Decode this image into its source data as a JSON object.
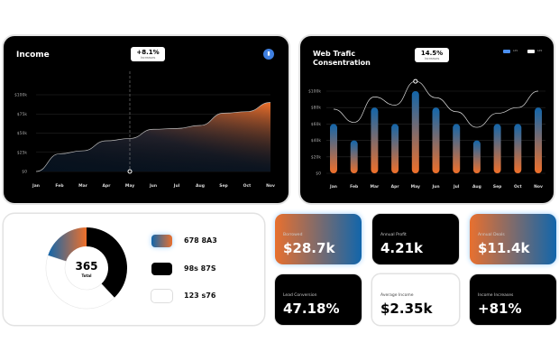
{
  "income": {
    "title": "Income",
    "tooltip": {
      "value": "+8.1%",
      "label": "Increases"
    },
    "icon": "bar-chart-icon"
  },
  "web": {
    "title_line1": "Web Trafic",
    "title_line2": "Consentration",
    "tooltip": {
      "value": "14.5%",
      "label": "Increases"
    },
    "legend": [
      "LP1",
      "LP2"
    ]
  },
  "donut": {
    "total": "365",
    "total_label": "Total",
    "legend": [
      "678 8A3",
      "98s 87S",
      "123 s76"
    ]
  },
  "stats": [
    {
      "label": "Borrowed",
      "value": "$28.7k"
    },
    {
      "label": "Annual Profit",
      "value": "4.21k"
    },
    {
      "label": "Annual Deals",
      "value": "$11.4k"
    },
    {
      "label": "Lead Conversion",
      "value": "47.18%"
    },
    {
      "label": "Average Income",
      "value": "$2.35k"
    },
    {
      "label": "Income Increases",
      "value": "+81%"
    }
  ],
  "colors": {
    "orange": "#e8702f",
    "blue": "#1266ab"
  },
  "chart_data": [
    {
      "type": "area",
      "title": "Income",
      "categories": [
        "Jan",
        "Feb",
        "Mar",
        "Apr",
        "May",
        "Jun",
        "Jul",
        "Aug",
        "Sep",
        "Oct",
        "Nov"
      ],
      "values": [
        0,
        23,
        27,
        40,
        43,
        55,
        56,
        60,
        76,
        78,
        90
      ],
      "yticks": [
        "$0",
        "$25k",
        "$50k",
        "$75k",
        "$100k"
      ],
      "ylim": [
        0,
        100
      ],
      "highlight": "May"
    },
    {
      "type": "bar",
      "title": "Web Trafic Consentration",
      "categories": [
        "Jan",
        "Feb",
        "Mar",
        "Apr",
        "May",
        "Jun",
        "Jul",
        "Aug",
        "Sep",
        "Oct",
        "Nov"
      ],
      "series": [
        {
          "name": "LP1",
          "type": "bar",
          "values": [
            60,
            40,
            80,
            60,
            100,
            80,
            60,
            40,
            60,
            60,
            80
          ]
        },
        {
          "name": "LP2",
          "type": "line",
          "values": [
            78,
            62,
            93,
            83,
            112,
            92,
            75,
            56,
            73,
            80,
            100
          ]
        }
      ],
      "yticks": [
        "$0",
        "$20k",
        "$40k",
        "$60k",
        "$80k",
        "$100k"
      ],
      "ylim": [
        0,
        100
      ],
      "highlight": "May"
    },
    {
      "type": "pie",
      "title": "Total",
      "values": [
        20,
        38,
        42
      ],
      "labels": [
        "678 8A3",
        "98s 87S",
        "123 s76"
      ]
    }
  ]
}
